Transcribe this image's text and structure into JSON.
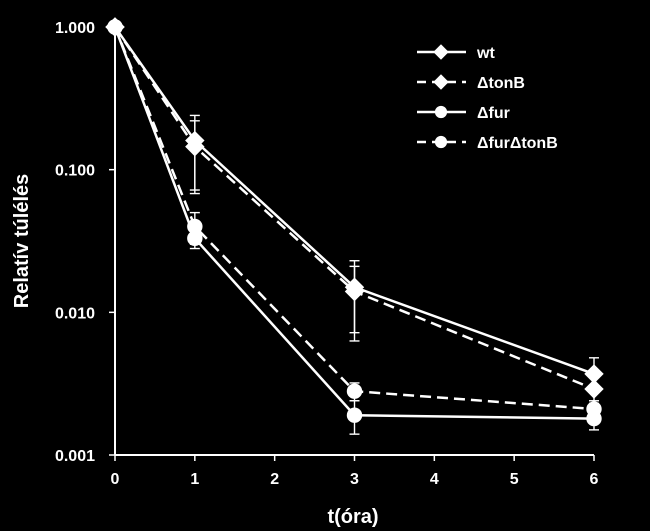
{
  "chart_data": {
    "type": "line",
    "title": "",
    "xlabel": "t(óra)",
    "ylabel": "Relatív túlélés",
    "x_ticks": [
      "0",
      "1",
      "2",
      "3",
      "4",
      "5",
      "6"
    ],
    "y_ticks": [
      "0.001",
      "0.010",
      "0.100",
      "1.000"
    ],
    "xlim": [
      0,
      6
    ],
    "ylim": [
      0.001,
      1
    ],
    "y_scale": "log",
    "grid": false,
    "legend_position": "top-right",
    "line_color": "#ffffff",
    "background_color": "#000000",
    "series": [
      {
        "name": "wt",
        "marker": "diamond",
        "line_style": "solid",
        "x": [
          0,
          1,
          3,
          6
        ],
        "y": [
          1.0,
          0.16,
          0.015,
          0.0037
        ],
        "err_low": [
          null,
          0.068,
          0.0063,
          0.0028
        ],
        "err_high": [
          null,
          0.24,
          0.023,
          0.0048
        ]
      },
      {
        "name": "ΔtonB",
        "marker": "diamond",
        "line_style": "dashed",
        "x": [
          0,
          1,
          3,
          6
        ],
        "y": [
          1.0,
          0.145,
          0.014,
          0.0029
        ],
        "err_low": [
          null,
          0.072,
          0.0072,
          0.0023
        ],
        "err_high": [
          null,
          0.22,
          0.021,
          0.0036
        ]
      },
      {
        "name": "Δfur",
        "marker": "circle",
        "line_style": "solid",
        "x": [
          0,
          1,
          3,
          6
        ],
        "y": [
          1.0,
          0.033,
          0.0019,
          0.0018
        ],
        "err_low": [
          null,
          0.028,
          0.0014,
          0.0015
        ],
        "err_high": [
          null,
          0.038,
          0.0024,
          0.0021
        ]
      },
      {
        "name": "ΔfurΔtonB",
        "marker": "circle",
        "line_style": "dashed",
        "x": [
          0,
          1,
          3,
          6
        ],
        "y": [
          1.0,
          0.04,
          0.0028,
          0.0021
        ],
        "err_low": [
          null,
          0.03,
          0.0024,
          0.0018
        ],
        "err_high": [
          null,
          0.05,
          0.0032,
          0.0024
        ]
      }
    ]
  }
}
